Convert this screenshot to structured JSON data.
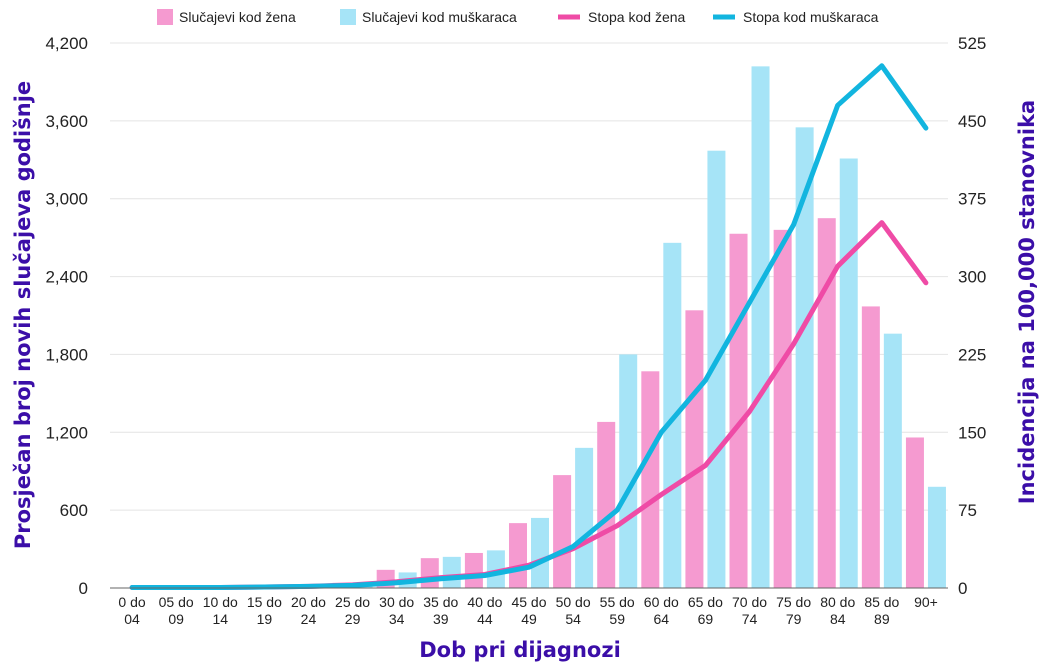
{
  "chart_data": {
    "type": "bar",
    "categories": [
      {
        "top": "0 do",
        "bottom": "04"
      },
      {
        "top": "05 do",
        "bottom": "09"
      },
      {
        "top": "10 do",
        "bottom": "14"
      },
      {
        "top": "15 do",
        "bottom": "19"
      },
      {
        "top": "20 do",
        "bottom": "24"
      },
      {
        "top": "25 do",
        "bottom": "29"
      },
      {
        "top": "30 do",
        "bottom": "34"
      },
      {
        "top": "35 do",
        "bottom": "39"
      },
      {
        "top": "40 do",
        "bottom": "44"
      },
      {
        "top": "45 do",
        "bottom": "49"
      },
      {
        "top": "50 do",
        "bottom": "54"
      },
      {
        "top": "55 do",
        "bottom": "59"
      },
      {
        "top": "60 do",
        "bottom": "64"
      },
      {
        "top": "65 do",
        "bottom": "69"
      },
      {
        "top": "70 do",
        "bottom": "74"
      },
      {
        "top": "75 do",
        "bottom": "79"
      },
      {
        "top": "80 do",
        "bottom": "84"
      },
      {
        "top": "85 do",
        "bottom": "89"
      },
      {
        "top": "90+",
        "bottom": ""
      }
    ],
    "bar_series": [
      {
        "name": "Slučajevi kod žena",
        "color": "#f59ad0",
        "axis": "left",
        "values": [
          0,
          0,
          0,
          0,
          5,
          40,
          140,
          230,
          270,
          500,
          870,
          1280,
          1670,
          2140,
          2730,
          2760,
          2850,
          2170,
          1160
        ]
      },
      {
        "name": "Slučajevi kod muškaraca",
        "color": "#a6e4f7",
        "axis": "left",
        "values": [
          0,
          0,
          0,
          0,
          5,
          25,
          120,
          240,
          290,
          540,
          1080,
          1800,
          2660,
          3370,
          4020,
          3550,
          3310,
          1960,
          780
        ]
      }
    ],
    "line_series": [
      {
        "name": "Stopa kod žena",
        "color": "#ef4ba6",
        "axis": "right",
        "values": [
          0.5,
          0.5,
          0.5,
          1,
          1.5,
          3,
          6,
          10,
          13,
          22,
          38,
          60,
          90,
          118,
          170,
          235,
          310,
          352,
          294
        ]
      },
      {
        "name": "Stopa kod muškaraca",
        "color": "#12b5df",
        "axis": "right",
        "values": [
          0.5,
          0.5,
          0.5,
          1,
          1.5,
          2.5,
          5,
          9,
          12,
          20,
          40,
          75,
          150,
          200,
          275,
          350,
          465,
          503,
          443
        ]
      }
    ],
    "xlabel": "Dob pri dijagnozi",
    "ylabel": "Prosječan broj novih slučajeva godišnje",
    "ylabel_right": "Incidencija na 100,000 stanovnika",
    "ylim": [
      0,
      4200
    ],
    "ylim_right": [
      0,
      525
    ],
    "yticks": [
      0,
      600,
      1200,
      1800,
      2400,
      3000,
      3600,
      4200
    ],
    "yticks_labels": [
      "0",
      "600",
      "1,200",
      "1,800",
      "2,400",
      "3,000",
      "3,600",
      "4,200"
    ],
    "yticks_right": [
      0,
      75,
      150,
      225,
      300,
      375,
      450,
      525
    ],
    "grid": true,
    "legend_position": "top"
  }
}
